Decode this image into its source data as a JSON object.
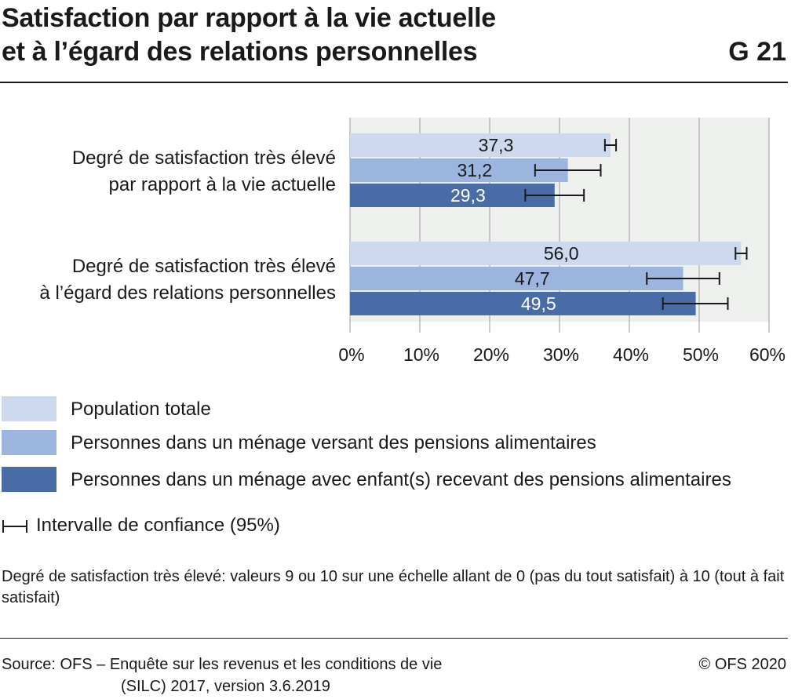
{
  "header": {
    "title_line1": "Satisfaction par rapport à la vie actuelle",
    "title_line2": "et à l’égard des relations personnelles",
    "figure_id": "G 21"
  },
  "chart_data": {
    "type": "bar",
    "orientation": "horizontal",
    "categories": [
      [
        "Degré de satisfaction très élevé",
        "par rapport à la vie actuelle"
      ],
      [
        "Degré de satisfaction très élevé",
        "à l’égard des relations personnelles"
      ]
    ],
    "series": [
      {
        "name": "Population totale",
        "color": "#cdd9ef",
        "values": [
          37.3,
          56.0
        ],
        "labels": [
          "37,3",
          "56,0"
        ],
        "ci_low": [
          36.5,
          55.2
        ],
        "ci_high": [
          38.1,
          56.8
        ]
      },
      {
        "name": "Personnes dans un ménage versant des pensions alimentaires",
        "color": "#9bb5de",
        "values": [
          31.2,
          47.7
        ],
        "labels": [
          "31,2",
          "47,7"
        ],
        "ci_low": [
          26.5,
          42.5
        ],
        "ci_high": [
          35.9,
          52.9
        ]
      },
      {
        "name": "Personnes dans un ménage avec enfant(s) recevant des pensions alimentaires",
        "color": "#4a6ca6",
        "values": [
          29.3,
          49.5
        ],
        "labels": [
          "29,3",
          "49,5"
        ],
        "ci_low": [
          25.1,
          44.8
        ],
        "ci_high": [
          33.5,
          54.1
        ]
      }
    ],
    "xlim": [
      0,
      60
    ],
    "xticks": [
      0,
      10,
      20,
      30,
      40,
      50,
      60
    ],
    "xtick_labels": [
      "0%",
      "10%",
      "20%",
      "30%",
      "40%",
      "50%",
      "60%"
    ],
    "xlabel": "",
    "ylabel": "",
    "grid": true,
    "plot_background": "#eef0ee",
    "ci_legend_label": "Intervalle de confiance (95%)"
  },
  "note": "Degré de satisfaction très élevé: valeurs 9 ou 10 sur une échelle allant de 0 (pas du tout satisfait) à 10 (tout à fait satisfait)",
  "footer": {
    "source_line1": "Source: OFS – Enquête sur les revenus et les conditions de vie",
    "source_line2": "(SILC) 2017, version 3.6.2019",
    "copyright": "© OFS 2020"
  }
}
